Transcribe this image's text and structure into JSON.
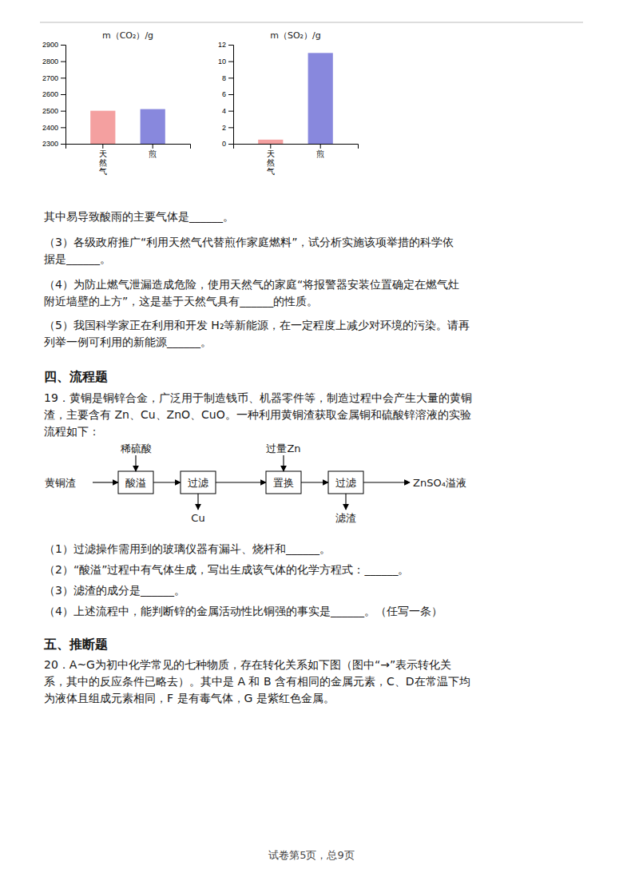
{
  "chart_data": [
    {
      "type": "bar",
      "title": "m（CO₂）/g",
      "categories": [
        "天\n然\n气",
        "煎"
      ],
      "values": [
        2500,
        2510
      ],
      "colors": [
        "#f4a0a0",
        "#8888dd"
      ],
      "ylim": [
        2300,
        2900
      ],
      "yticks": [
        2300,
        2400,
        2500,
        2600,
        2700,
        2800,
        2900
      ],
      "grid": false
    },
    {
      "type": "bar",
      "title": "m（SO₂）/g",
      "categories": [
        "天\n然\n气",
        "煎"
      ],
      "values": [
        0.5,
        11
      ],
      "colors": [
        "#f4a0a0",
        "#8888dd"
      ],
      "ylim": [
        0,
        12
      ],
      "yticks": [
        0,
        2,
        4,
        6,
        8,
        10,
        12
      ],
      "grid": false
    }
  ],
  "page": {
    "text_blocks": [
      "其中易导致酸雨的主要气体是______。",
      "（3）各级政府推广“利用天然气代替煎作家庭燃料”，试分析实施该项举措的科学依",
      "据是______。",
      "（4）为防止燃气泄漏造成危险，使用天然气的家庭“将报警器安装位置确定在燃气灶",
      "附近墙壁的上方”，这是基于天然气具有______的性质。",
      "（5）我国科学家正在利用和开发 H₂等新能源，在一定程度上减少对环境的污染。请再",
      "列举一例可利用的新能源______。"
    ],
    "section4_title": "四、流程题",
    "prob19_lines": [
      "19．黄铜是铜锌合金，广泛用于制造钱币、机器零件等，制造过程中会产生大量的黄铜",
      "渣，主要含有 Zn、Cu、ZnO、CuO。一种利用黄铜渣获取金属铜和硫酸锌溶液的实验",
      "流程如下："
    ],
    "flow": {
      "input_label": "黄铜渣",
      "boxes": [
        "酸溢",
        "过滤",
        "置换",
        "过滤"
      ],
      "output_label": "ZnSO₄溢液",
      "top_labels": [
        "稀硫酸",
        "过量Zn"
      ],
      "top_box_indices": [
        0,
        2
      ],
      "bottom_labels": [
        "Cu",
        "滤渣"
      ],
      "bottom_box_indices": [
        1,
        3
      ]
    },
    "questions19": [
      "（1）过滤操作需用到的玻璃仪器有漏斗、烧杆和______。",
      "（2）“酸溢”过程中有气体生成，写出生成该气体的化学方程式：______。",
      "（3）滤渣的成分是______。",
      "（4）上述流程中，能判断锌的金属活动性比铜强的事实是______。（任写一条）"
    ],
    "section5_title": "五、推断题",
    "sec5_lines": [
      "20．A~G为初中化学常见的七种物质，存在转化关系如下图（图中“→”表示转化关",
      "系，其中的反应条件已略去）。其中是 A 和 B 含有相同的金属元素，C、D在常温下均",
      "为液体且组成元素相同，F 是有毒气体，G 是紫红色金属。"
    ],
    "page_label": "试卷第5页，总9页"
  }
}
